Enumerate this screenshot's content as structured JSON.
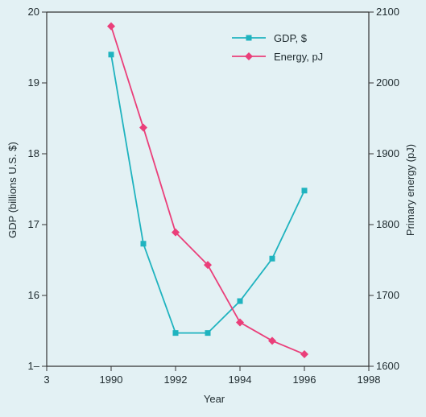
{
  "chart_data": {
    "type": "line",
    "x": [
      1990,
      1991,
      1992,
      1993,
      1994,
      1995,
      1996
    ],
    "series": [
      {
        "name": "GDP, $",
        "axis": "left",
        "color": "#1fb3bf",
        "marker": "square",
        "values": [
          19.4,
          16.73,
          15.47,
          15.47,
          15.92,
          16.52,
          17.48
        ]
      },
      {
        "name": "Energy, pJ",
        "axis": "right",
        "color": "#ea3f7a",
        "marker": "diamond",
        "values": [
          2080,
          1937,
          1789,
          1743,
          1662,
          1636,
          1617
        ]
      }
    ],
    "xlabel": "Year",
    "ylabel_left": "GDP (billions U.S. $)",
    "ylabel_right": "Primary energy (pJ)",
    "xlim": [
      1988,
      1998
    ],
    "ylim_left": [
      15,
      20
    ],
    "ylim_right": [
      1600,
      2100
    ],
    "xticks": [
      "3",
      "1990",
      "1992",
      "1994",
      "1996",
      "1998"
    ],
    "yticks_left": [
      "1–",
      "16",
      "17",
      "18",
      "19",
      "20"
    ],
    "yticks_right": [
      "1600",
      "1700",
      "1800",
      "1900",
      "2000",
      "2100"
    ],
    "grid": false,
    "legend_position": "top-right"
  }
}
